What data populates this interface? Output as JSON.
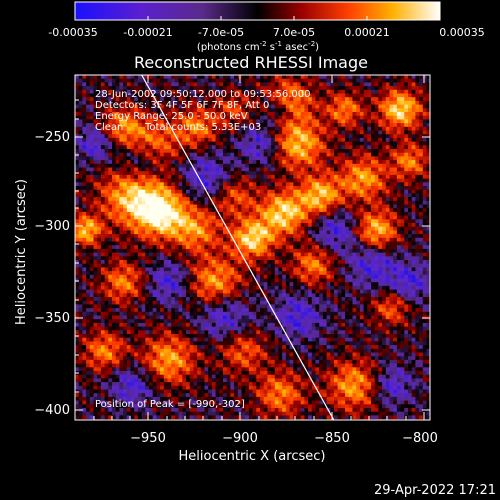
{
  "colorbar": {
    "tick_labels": [
      "-0.00035",
      "-0.00021",
      "-7.0e-05",
      "7.0e-05",
      "0.00021",
      "0.00035"
    ],
    "unit_prefix": "(photons cm",
    "unit_exp1": "-2",
    "unit_mid": " s",
    "unit_exp2": "-1",
    "unit_suffix": " asec",
    "unit_exp3": "-2",
    "unit_close": ")",
    "range": [
      -0.00035,
      0.00035
    ]
  },
  "annotations": {
    "time_range": "28-Jun-2002 09:50:12.000 to 09:53:56.000",
    "detectors": "Detectors: 3F 4F 5F 6F 7F 8F, Att 0",
    "energy_range": "Energy Range: 25.0 - 50.0 keV",
    "clean_label": "Clean",
    "total_counts": "Total counts: 5.33E+03",
    "peak": "Position of Peak = [-990,-302]"
  },
  "footer": {
    "timestamp": "29-Apr-2022 17:21"
  },
  "chart_data": {
    "type": "heatmap",
    "title": "Reconstructed RHESSI Image",
    "xlabel": "Heliocentric X (arcsec)",
    "ylabel": "Heliocentric Y (arcsec)",
    "xlim": [
      -991,
      -799
    ],
    "ylim": [
      -410,
      -210
    ],
    "x_ticks": [
      -950,
      -900,
      -850,
      -800
    ],
    "y_ticks": [
      -400,
      -350,
      -300,
      -250
    ],
    "x_tick_labels": [
      "−950",
      "−900",
      "−850",
      "−800"
    ],
    "y_tick_labels": [
      "−400",
      "−350",
      "−300",
      "−250"
    ],
    "colormap": "red-temperature (blue-purple-black-red-orange-yellow-white)",
    "limb_line": {
      "x": [
        -957,
        -851
      ],
      "y": [
        -206,
        -410
      ]
    },
    "peak_position": [
      -990,
      -302
    ],
    "description": "Image of reconstructed flux: dark background with patchy purple negative sidelobes and red/orange/yellow positive sources; brightest blobs near x=-960..-940, y=-290 and along the right-center column near x=-880..-870."
  }
}
